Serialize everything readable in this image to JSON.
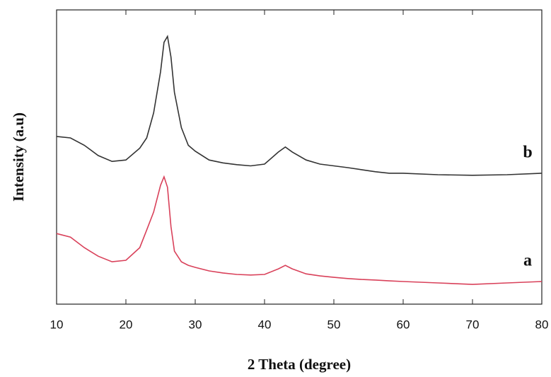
{
  "chart_data": {
    "type": "line",
    "xlabel": "2 Theta (degree)",
    "ylabel": "Intensity (a.u)",
    "x": [
      10,
      12,
      14,
      16,
      18,
      20,
      22,
      23,
      24,
      25,
      25.5,
      26,
      26.5,
      27,
      28,
      29,
      30,
      32,
      34,
      36,
      38,
      40,
      42,
      43,
      44,
      46,
      48,
      50,
      52,
      54,
      56,
      58,
      60,
      65,
      70,
      75,
      80
    ],
    "series": [
      {
        "name": "b",
        "color": "#333333",
        "values": [
          57,
          56.5,
          54,
          50.5,
          48.5,
          49,
          53,
          56.5,
          65,
          79,
          89,
          91,
          84,
          72,
          60,
          54,
          52,
          49,
          48,
          47.4,
          47,
          47.6,
          51.7,
          53.4,
          51.7,
          49,
          47.6,
          47,
          46.4,
          45.7,
          45,
          44.5,
          44.5,
          44,
          43.8,
          44,
          44.5
        ]
      },
      {
        "name": "a",
        "color": "#d9415a",
        "values": [
          24,
          22.8,
          19.2,
          16.3,
          14.4,
          14.9,
          19.2,
          25.2,
          31.3,
          40.4,
          43.3,
          39.7,
          26.4,
          18,
          14.4,
          13.2,
          12.5,
          11.3,
          10.6,
          10.1,
          9.9,
          10.1,
          12,
          13.2,
          12,
          10.3,
          9.6,
          9.1,
          8.7,
          8.4,
          8.2,
          7.9,
          7.7,
          7.2,
          6.7,
          7.2,
          7.7
        ]
      }
    ],
    "xlim": [
      10,
      80
    ],
    "xticks": [
      10,
      20,
      30,
      40,
      50,
      60,
      70,
      80
    ],
    "ylim": [
      0,
      100
    ]
  }
}
